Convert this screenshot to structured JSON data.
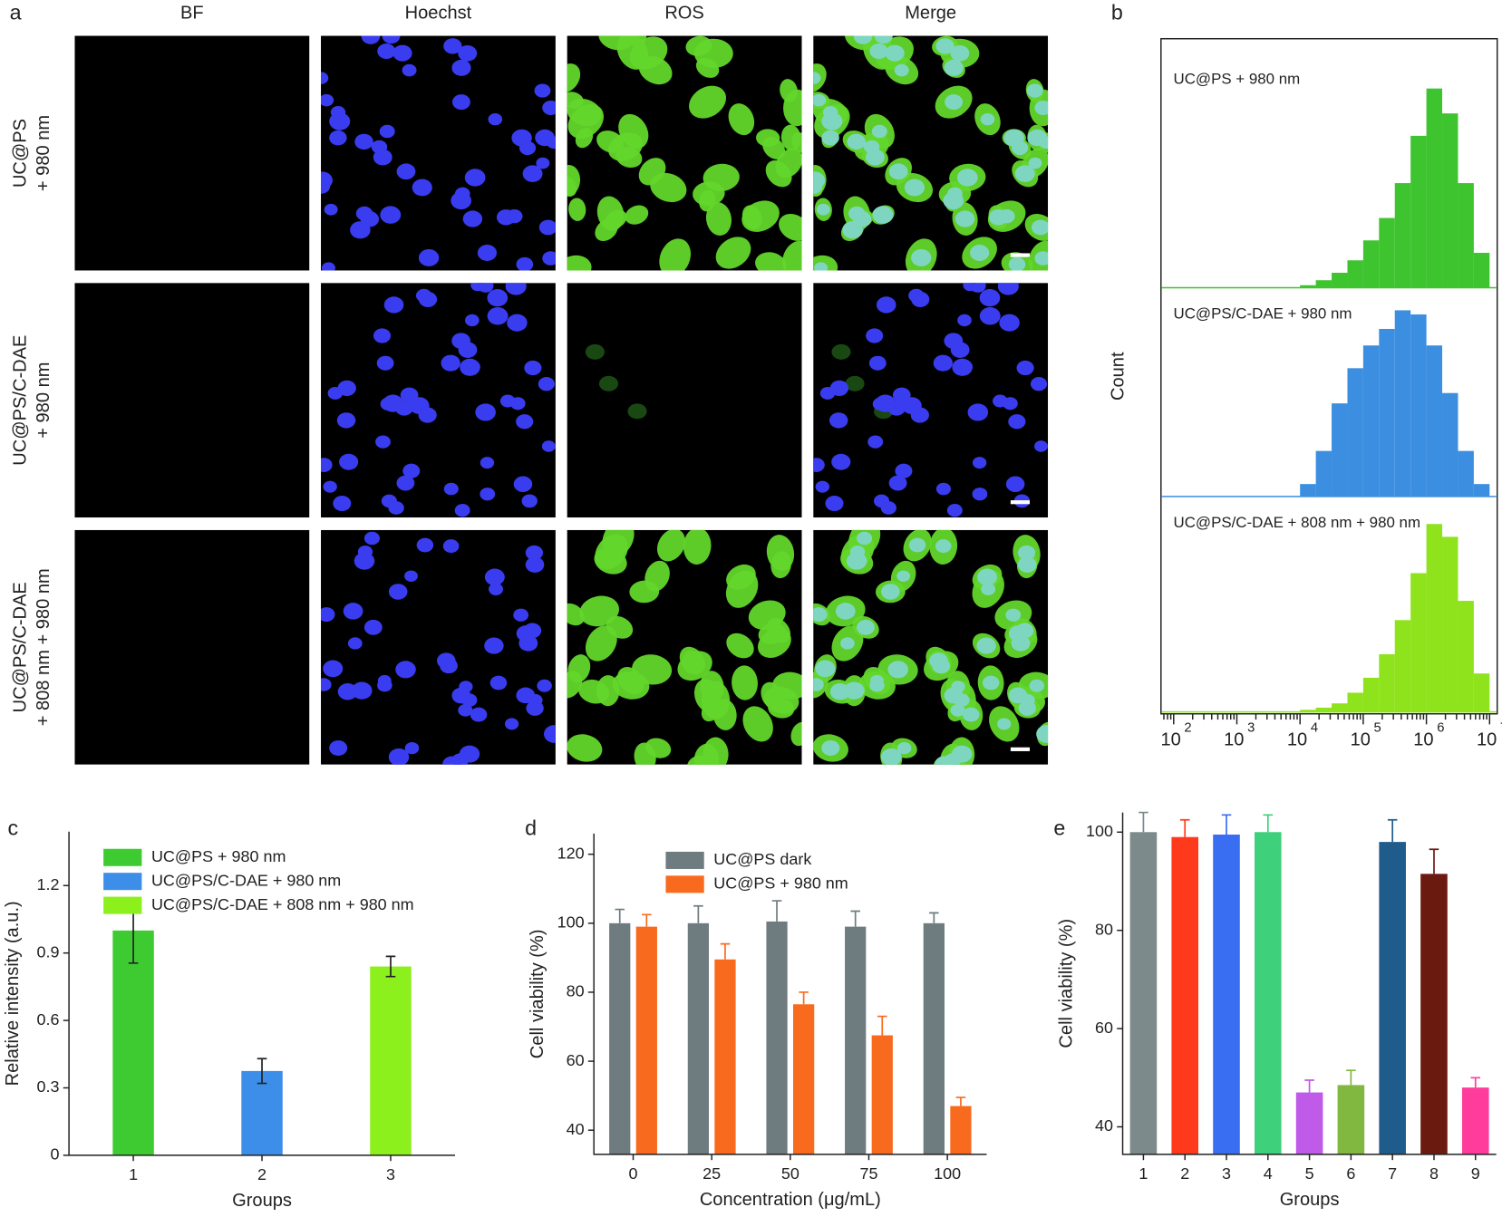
{
  "panels": [
    "a",
    "b",
    "c",
    "d",
    "e"
  ],
  "image_grid": {
    "columns": [
      "BF",
      "Hoechst",
      "ROS",
      "Merge"
    ],
    "rows": [
      [
        "UC@PS",
        "+ 980 nm"
      ],
      [
        "UC@PS/C-DAE",
        "+ 980 nm"
      ],
      [
        "UC@PS/C-DAE",
        "+ 808 nm + 980 nm"
      ]
    ]
  },
  "chart_data": [
    {
      "type": "histogram",
      "ylabel": "Count",
      "log_x": true,
      "xlim": [
        63,
        13200000
      ],
      "xticks": [
        {
          "value": 100,
          "label": "10",
          "exponent": "2"
        },
        {
          "value": 1000,
          "label": "10",
          "exponent": "3"
        },
        {
          "value": 10000,
          "label": "10",
          "exponent": "4"
        },
        {
          "value": 100000,
          "label": "10",
          "exponent": "5"
        },
        {
          "value": 1000000,
          "label": "10",
          "exponent": "6"
        },
        {
          "value": 10000000,
          "label": "10",
          "exponent": "7"
        }
      ],
      "ylim": [
        0,
        100
      ],
      "bins": [
        3162,
        5623,
        10000,
        17783,
        31623,
        56234,
        100000,
        177828,
        316228,
        562341,
        1000000,
        1778279,
        3162278,
        5623413,
        10000000
      ],
      "series": [
        {
          "name": "UC@PS + 980 nm",
          "color": "#3ec42e",
          "values": [
            0,
            0,
            1,
            3,
            6,
            11,
            19,
            28,
            42,
            61,
            80,
            70,
            42,
            14
          ]
        },
        {
          "name": "UC@PS/C-DAE + 980 nm",
          "color": "#3b8ee0",
          "values": [
            0,
            0,
            6,
            22,
            45,
            62,
            73,
            81,
            90,
            88,
            73,
            50,
            22,
            6
          ]
        },
        {
          "name": "UC@PS/C-DAE + 808 nm + 980 nm",
          "color": "#8ee31c",
          "values": [
            0,
            0,
            1,
            2,
            4,
            9,
            16,
            27,
            43,
            65,
            88,
            82,
            52,
            18
          ]
        }
      ]
    },
    {
      "type": "bar",
      "xlabel": "Groups",
      "ylabel": "Relative intensity (a.u.)",
      "categories": [
        "1",
        "2",
        "3"
      ],
      "ylim": [
        0,
        1.44
      ],
      "yticks": [
        0,
        0.3,
        0.6,
        0.9,
        1.2
      ],
      "error_bars": "both",
      "series": [
        {
          "values": [
            1.0,
            0.375,
            0.84
          ],
          "errors": [
            0.145,
            0.055,
            0.045
          ],
          "colors": [
            "#3ecb32",
            "#3d8ee8",
            "#8cf01c"
          ]
        }
      ],
      "legend": {
        "corner": "top-left",
        "labels": [
          "UC@PS + 980 nm",
          "UC@PS/C-DAE + 980 nm",
          "UC@PS/C-DAE + 808 nm + 980 nm"
        ]
      }
    },
    {
      "type": "bar",
      "xlabel": "Concentration (μg/mL)",
      "ylabel": "Cell viability (%)",
      "categories": [
        "0",
        "25",
        "50",
        "75",
        "100"
      ],
      "ylim": [
        33,
        126
      ],
      "yticks": [
        40,
        60,
        80,
        100,
        120
      ],
      "error_bars": "upper",
      "series": [
        {
          "name": "UC@PS dark",
          "color": "#6e7b7f",
          "values": [
            100,
            100,
            100.5,
            99,
            100
          ],
          "errors": [
            4,
            5,
            6,
            4.5,
            3
          ]
        },
        {
          "name": "UC@PS + 980 nm",
          "color": "#f86a1e",
          "values": [
            99,
            89.5,
            76.5,
            67.5,
            47
          ],
          "errors": [
            3.5,
            4.5,
            3.5,
            5.5,
            2.5
          ]
        }
      ],
      "legend": {
        "corner": "top"
      }
    },
    {
      "type": "bar",
      "xlabel": "Groups",
      "ylabel": "Cell viability (%)",
      "categories": [
        "1",
        "2",
        "3",
        "4",
        "5",
        "6",
        "7",
        "8",
        "9"
      ],
      "ylim": [
        34.4,
        104
      ],
      "yticks": [
        40,
        60,
        80,
        100
      ],
      "error_bars": "upper",
      "series": [
        {
          "values": [
            100,
            99,
            99.5,
            100,
            47,
            48.5,
            98,
            91.5,
            48
          ],
          "errors": [
            4,
            3.5,
            4,
            3.5,
            2.5,
            3,
            4.5,
            5,
            2
          ],
          "colors": [
            "#7c8a8c",
            "#ff3a1c",
            "#3a6ef2",
            "#3ed07a",
            "#c05ae8",
            "#80b840",
            "#1f5c8c",
            "#6b1a10",
            "#ff3c9c"
          ]
        }
      ]
    }
  ]
}
